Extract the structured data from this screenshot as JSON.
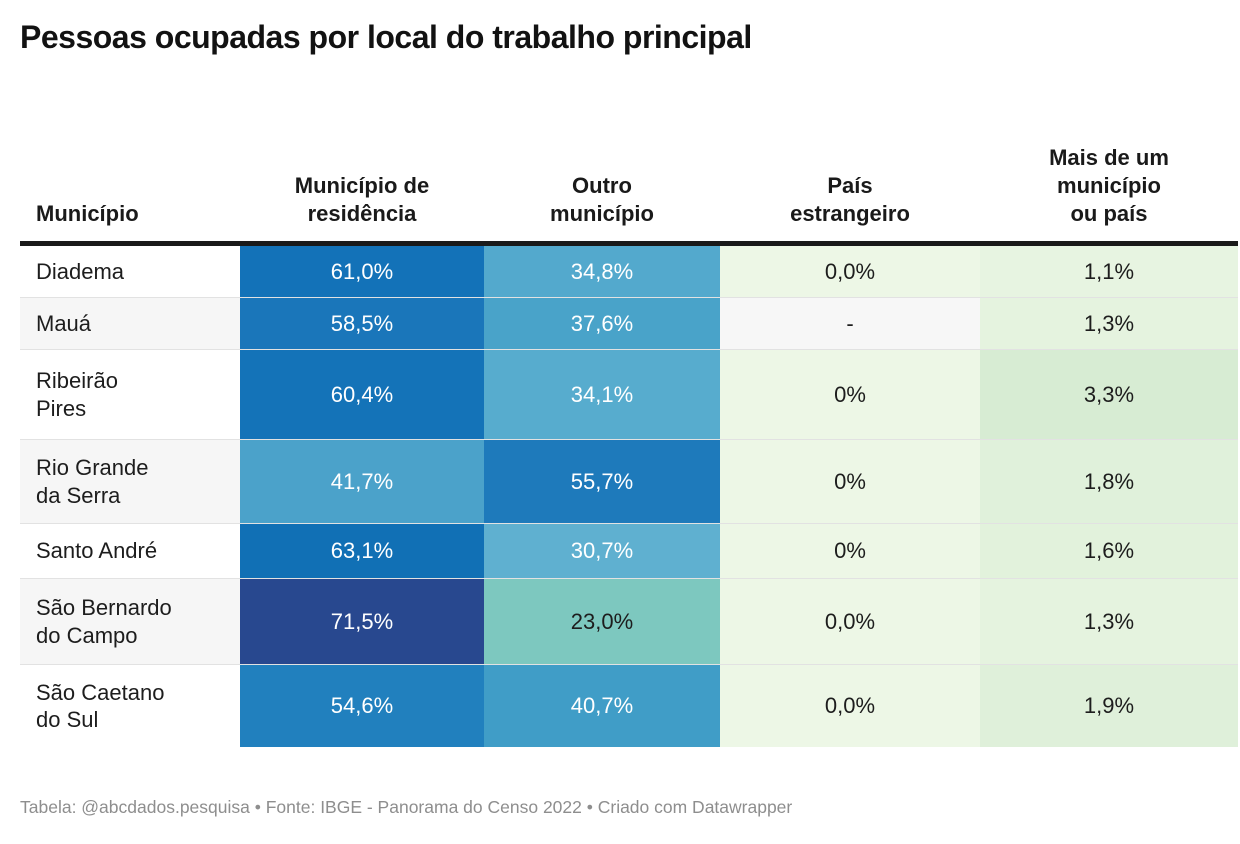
{
  "title": "Pessoas ocupadas por local do trabalho principal",
  "table": {
    "columns": [
      "Município",
      "Município de\nresidência",
      "Outro\nmunicípio",
      "País\nestrangeiro",
      "Mais de um\nmunicípio\nou país"
    ],
    "rows": [
      {
        "name": "Diadema",
        "name_bg": "#ffffff",
        "cells": [
          {
            "value": "61,0%",
            "bg": "#1372b8",
            "fg": "#ffffff"
          },
          {
            "value": "34,8%",
            "bg": "#53a9cd",
            "fg": "#ffffff"
          },
          {
            "value": "0,0%",
            "bg": "#edf7e6",
            "fg": "#1d1d1d"
          },
          {
            "value": "1,1%",
            "bg": "#e7f4e1",
            "fg": "#1d1d1d"
          }
        ]
      },
      {
        "name": "Mauá",
        "name_bg": "#f6f6f6",
        "cells": [
          {
            "value": "58,5%",
            "bg": "#1a76ba",
            "fg": "#ffffff"
          },
          {
            "value": "37,6%",
            "bg": "#49a3c9",
            "fg": "#ffffff"
          },
          {
            "value": "-",
            "bg": "#f7f7f7",
            "fg": "#1d1d1d"
          },
          {
            "value": "1,3%",
            "bg": "#e5f3df",
            "fg": "#1d1d1d"
          }
        ]
      },
      {
        "name": "Ribeirão\nPires",
        "name_bg": "#ffffff",
        "cells": [
          {
            "value": "60,4%",
            "bg": "#1473b8",
            "fg": "#ffffff"
          },
          {
            "value": "34,1%",
            "bg": "#57acce",
            "fg": "#ffffff"
          },
          {
            "value": "0%",
            "bg": "#edf7e6",
            "fg": "#1d1d1d"
          },
          {
            "value": "3,3%",
            "bg": "#d7ecd3",
            "fg": "#1d1d1d"
          }
        ]
      },
      {
        "name": "Rio Grande\nda Serra",
        "name_bg": "#f6f6f6",
        "cells": [
          {
            "value": "41,7%",
            "bg": "#4ba2ca",
            "fg": "#ffffff"
          },
          {
            "value": "55,7%",
            "bg": "#1e7abb",
            "fg": "#ffffff"
          },
          {
            "value": "0%",
            "bg": "#edf7e6",
            "fg": "#1d1d1d"
          },
          {
            "value": "1,8%",
            "bg": "#e0f1db",
            "fg": "#1d1d1d"
          }
        ]
      },
      {
        "name": "Santo André",
        "name_bg": "#ffffff",
        "cells": [
          {
            "value": "63,1%",
            "bg": "#1170b5",
            "fg": "#ffffff"
          },
          {
            "value": "30,7%",
            "bg": "#5fb0d0",
            "fg": "#ffffff"
          },
          {
            "value": "0%",
            "bg": "#edf7e6",
            "fg": "#1d1d1d"
          },
          {
            "value": "1,6%",
            "bg": "#e2f2dc",
            "fg": "#1d1d1d"
          }
        ]
      },
      {
        "name": "São Bernardo\ndo Campo",
        "name_bg": "#f6f6f6",
        "cells": [
          {
            "value": "71,5%",
            "bg": "#28488f",
            "fg": "#ffffff"
          },
          {
            "value": "23,0%",
            "bg": "#7dc8bf",
            "fg": "#1d1d1d"
          },
          {
            "value": "0,0%",
            "bg": "#edf7e6",
            "fg": "#1d1d1d"
          },
          {
            "value": "1,3%",
            "bg": "#e5f3df",
            "fg": "#1d1d1d"
          }
        ]
      },
      {
        "name": "São Caetano\ndo Sul",
        "name_bg": "#ffffff",
        "cells": [
          {
            "value": "54,6%",
            "bg": "#2180be",
            "fg": "#ffffff"
          },
          {
            "value": "40,7%",
            "bg": "#409dc7",
            "fg": "#ffffff"
          },
          {
            "value": "0,0%",
            "bg": "#edf7e6",
            "fg": "#1d1d1d"
          },
          {
            "value": "1,9%",
            "bg": "#dff0da",
            "fg": "#1d1d1d"
          }
        ]
      }
    ]
  },
  "footer": {
    "text": "Tabela: @abcdados.pesquisa • Fonte: IBGE - Panorama do Censo 2022 • Criado com Datawrapper"
  },
  "colors": {
    "header_rule": "#1a1a1a",
    "row_separator": "#e2e2e2",
    "heat_high": "#28488f",
    "heat_mid": "#1372b8",
    "heat_teal": "#7dc8bf",
    "heat_low_green": "#d7ecd3",
    "footer_text": "#8e8e8e"
  },
  "chart_data": {
    "type": "table",
    "title": "Pessoas ocupadas por local do trabalho principal",
    "categories": [
      "Diadema",
      "Mauá",
      "Ribeirão Pires",
      "Rio Grande da Serra",
      "Santo André",
      "São Bernardo do Campo",
      "São Caetano do Sul"
    ],
    "series": [
      {
        "name": "Município de residência",
        "values": [
          61.0,
          58.5,
          60.4,
          41.7,
          63.1,
          71.5,
          54.6
        ]
      },
      {
        "name": "Outro município",
        "values": [
          34.8,
          37.6,
          34.1,
          55.7,
          30.7,
          23.0,
          40.7
        ]
      },
      {
        "name": "País estrangeiro",
        "values": [
          0.0,
          null,
          0,
          0,
          0,
          0.0,
          0.0
        ]
      },
      {
        "name": "Mais de um município ou país",
        "values": [
          1.1,
          1.3,
          3.3,
          1.8,
          1.6,
          1.3,
          1.9
        ]
      }
    ],
    "unit": "%",
    "heatmap": true,
    "notes": "null = value shown as '-' (Mauá, País estrangeiro)"
  }
}
